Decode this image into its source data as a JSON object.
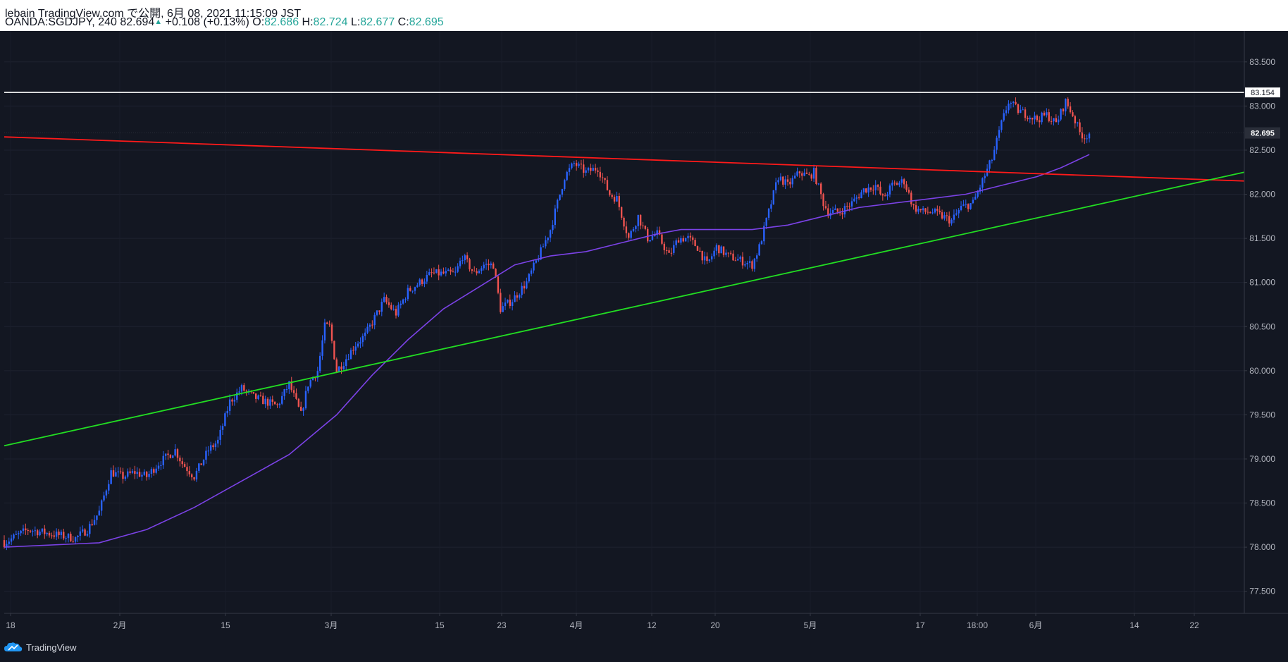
{
  "header": {
    "line1": "lebain TradingView.com で公開, 6月 08, 2021 11:15:09 JST",
    "symbol_info": "OANDA:SGDJPY, 240 82.694",
    "change_arrow": "▲",
    "change": "+0.108 (+0.13%)",
    "o_label": "O:",
    "o_value": "82.686",
    "h_label": "H:",
    "h_value": "82.724",
    "l_label": "L:",
    "l_value": "82.677",
    "c_label": "C:",
    "c_value": "82.695"
  },
  "footer": {
    "brand": "TradingView"
  },
  "colors": {
    "background": "#131722",
    "up": "#2962ff",
    "down": "#ef5350",
    "resistance": "#ff1a1a",
    "support": "#22dd22",
    "ma": "#7b42e6",
    "hline": "#ffffff",
    "axis_text": "#b2b5be"
  },
  "chart_data": {
    "type": "candlestick",
    "symbol": "OANDA:SGDJPY",
    "interval": "240",
    "y_range": [
      77.25,
      83.85
    ],
    "y_ticks": [
      "77.500",
      "78.000",
      "78.500",
      "79.000",
      "79.500",
      "80.000",
      "80.500",
      "81.000",
      "81.500",
      "82.000",
      "82.500",
      "83.000",
      "83.500"
    ],
    "x_ticks": [
      "18",
      "2月",
      "15",
      "3月",
      "15",
      "23",
      "4月",
      "12",
      "20",
      "5月",
      "17",
      "18:00",
      "6月",
      "14",
      "22"
    ],
    "price_labels": {
      "horizontal_line": "83.154",
      "last_price": "82.695"
    },
    "horizontal_line_value": 83.154,
    "last_price_value": 82.695,
    "close_path": [
      [
        0,
        78.05
      ],
      [
        10,
        78.2
      ],
      [
        20,
        78.15
      ],
      [
        30,
        78.1
      ],
      [
        35,
        78.2
      ],
      [
        40,
        78.4
      ],
      [
        45,
        78.85
      ],
      [
        50,
        78.8
      ],
      [
        55,
        78.85
      ],
      [
        60,
        78.8
      ],
      [
        65,
        78.95
      ],
      [
        72,
        79.1
      ],
      [
        75,
        78.95
      ],
      [
        80,
        78.8
      ],
      [
        86,
        79.1
      ],
      [
        90,
        79.2
      ],
      [
        95,
        79.65
      ],
      [
        100,
        79.8
      ],
      [
        105,
        79.7
      ],
      [
        110,
        79.65
      ],
      [
        115,
        79.6
      ],
      [
        120,
        79.85
      ],
      [
        125,
        79.5
      ],
      [
        128,
        79.85
      ],
      [
        132,
        80.0
      ],
      [
        135,
        80.5
      ],
      [
        137,
        80.5
      ],
      [
        140,
        80.0
      ],
      [
        143,
        80.1
      ],
      [
        148,
        80.3
      ],
      [
        152,
        80.4
      ],
      [
        156,
        80.6
      ],
      [
        160,
        80.8
      ],
      [
        165,
        80.65
      ],
      [
        170,
        80.9
      ],
      [
        175,
        81.0
      ],
      [
        180,
        81.1
      ],
      [
        185,
        81.1
      ],
      [
        190,
        81.1
      ],
      [
        193,
        81.3
      ],
      [
        198,
        81.1
      ],
      [
        202,
        81.2
      ],
      [
        206,
        81.2
      ],
      [
        209,
        80.7
      ],
      [
        214,
        80.8
      ],
      [
        220,
        81.0
      ],
      [
        226,
        81.35
      ],
      [
        230,
        81.6
      ],
      [
        236,
        82.2
      ],
      [
        240,
        82.35
      ],
      [
        245,
        82.25
      ],
      [
        250,
        82.3
      ],
      [
        255,
        82.0
      ],
      [
        258,
        81.95
      ],
      [
        263,
        81.5
      ],
      [
        267,
        81.75
      ],
      [
        271,
        81.5
      ],
      [
        275,
        81.55
      ],
      [
        280,
        81.3
      ],
      [
        284,
        81.5
      ],
      [
        288,
        81.5
      ],
      [
        292,
        81.4
      ],
      [
        296,
        81.2
      ],
      [
        300,
        81.4
      ],
      [
        305,
        81.3
      ],
      [
        310,
        81.25
      ],
      [
        315,
        81.2
      ],
      [
        318,
        81.4
      ],
      [
        322,
        81.8
      ],
      [
        326,
        82.2
      ],
      [
        330,
        82.1
      ],
      [
        335,
        82.25
      ],
      [
        339,
        82.2
      ],
      [
        341,
        82.25
      ],
      [
        345,
        81.9
      ],
      [
        347,
        81.8
      ],
      [
        352,
        81.8
      ],
      [
        357,
        81.9
      ],
      [
        362,
        82.05
      ],
      [
        367,
        82.1
      ],
      [
        370,
        81.95
      ],
      [
        374,
        82.1
      ],
      [
        379,
        82.15
      ],
      [
        383,
        81.85
      ],
      [
        387,
        81.8
      ],
      [
        391,
        81.8
      ],
      [
        395,
        81.75
      ],
      [
        399,
        81.7
      ],
      [
        403,
        81.85
      ],
      [
        408,
        81.9
      ],
      [
        412,
        82.15
      ],
      [
        416,
        82.4
      ],
      [
        420,
        82.8
      ],
      [
        423,
        83.05
      ],
      [
        427,
        82.95
      ],
      [
        431,
        82.9
      ],
      [
        435,
        82.85
      ],
      [
        439,
        82.9
      ],
      [
        443,
        82.8
      ],
      [
        447,
        83.05
      ],
      [
        450,
        82.9
      ],
      [
        453,
        82.7
      ],
      [
        455,
        82.65
      ],
      [
        457,
        82.695
      ]
    ],
    "ma_path": [
      [
        0,
        78.0
      ],
      [
        40,
        78.05
      ],
      [
        60,
        78.2
      ],
      [
        80,
        78.45
      ],
      [
        100,
        78.75
      ],
      [
        120,
        79.05
      ],
      [
        140,
        79.5
      ],
      [
        155,
        79.95
      ],
      [
        170,
        80.35
      ],
      [
        185,
        80.7
      ],
      [
        200,
        80.95
      ],
      [
        215,
        81.2
      ],
      [
        230,
        81.3
      ],
      [
        245,
        81.35
      ],
      [
        260,
        81.45
      ],
      [
        275,
        81.55
      ],
      [
        285,
        81.6
      ],
      [
        300,
        81.6
      ],
      [
        315,
        81.6
      ],
      [
        330,
        81.65
      ],
      [
        345,
        81.75
      ],
      [
        360,
        81.85
      ],
      [
        375,
        81.9
      ],
      [
        390,
        81.95
      ],
      [
        405,
        82.0
      ],
      [
        420,
        82.1
      ],
      [
        435,
        82.2
      ],
      [
        445,
        82.3
      ],
      [
        457,
        82.45
      ]
    ],
    "resistance_line": [
      [
        0,
        82.65
      ],
      [
        520,
        82.15
      ]
    ],
    "support_line": [
      [
        0,
        79.15
      ],
      [
        520,
        82.25
      ]
    ]
  }
}
